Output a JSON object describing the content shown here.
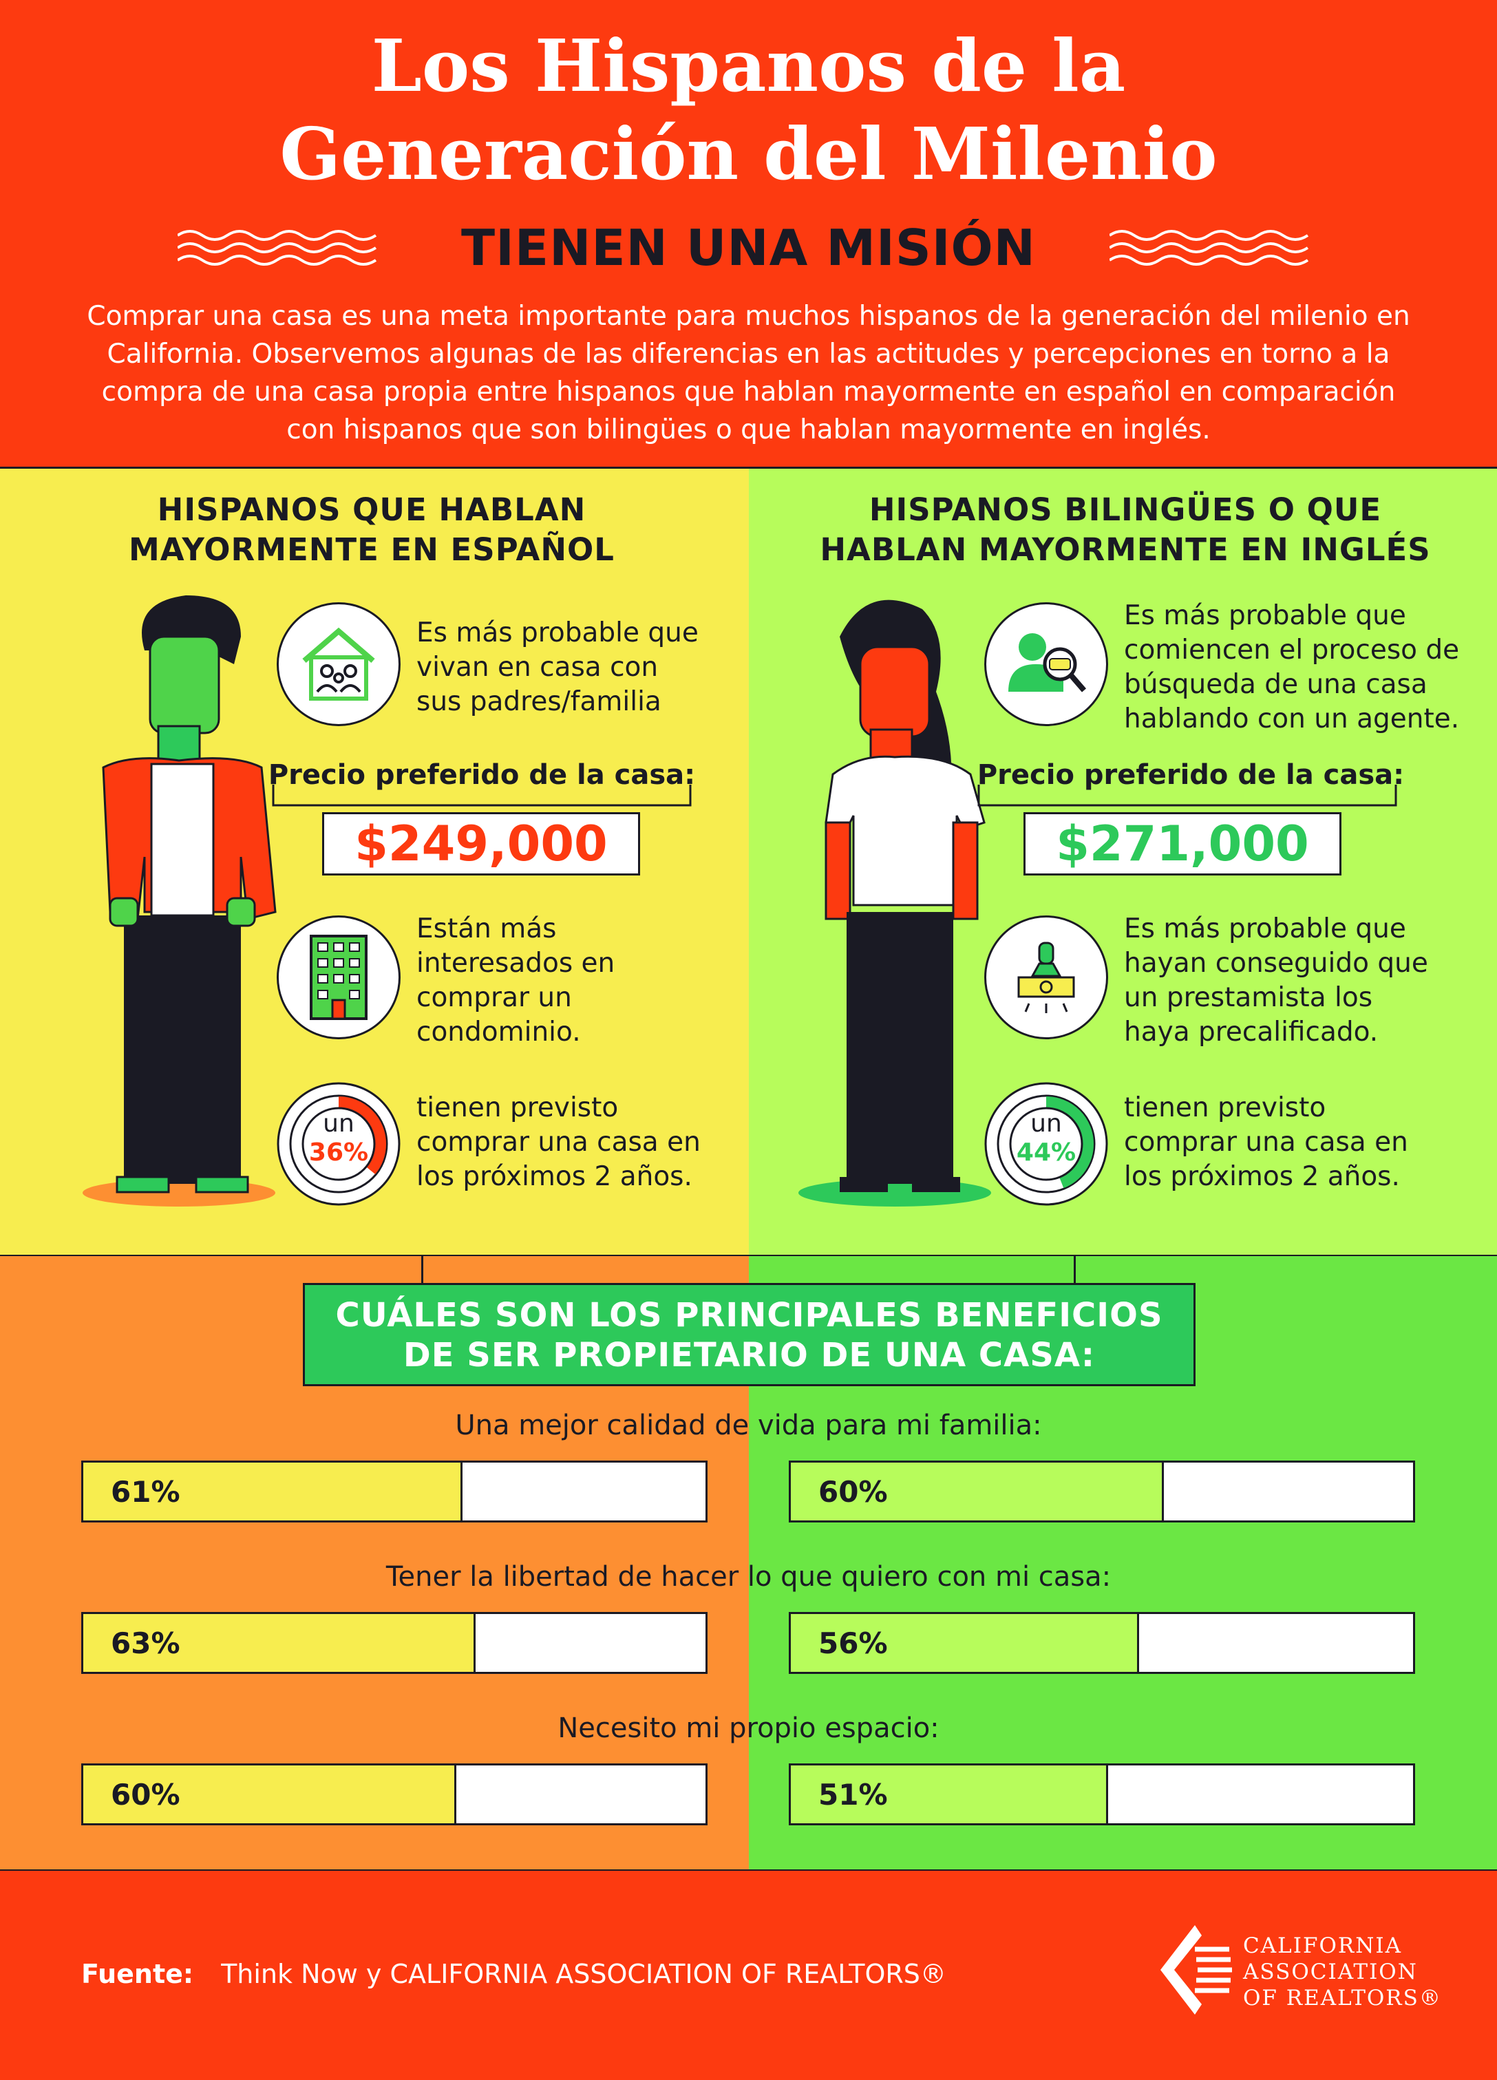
{
  "header": {
    "title_line1": "Los Hispanos de la",
    "title_line2": "Generación del Milenio",
    "subtitle": "TIENEN UNA MISIÓN",
    "intro": "Comprar una casa es una meta importante para muchos hispanos de la generación del milenio en California. Observemos algunas de las diferencias en las actitudes y percepciones en torno a la compra de una casa propia entre hispanos que hablan mayormente en español en comparación con hispanos que son bilingües o que hablan mayormente en inglés."
  },
  "left": {
    "title_line1": "HISPANOS QUE HABLAN",
    "title_line2": "MAYORMENTE EN ESPAÑOL",
    "fact1": [
      "Es más probable que",
      "vivan en casa con",
      "sus padres/familia"
    ],
    "price_label": "Precio preferido de la casa:",
    "price": "$249,000",
    "fact2": [
      "Están más",
      "interesados en",
      "comprar un",
      "condominio."
    ],
    "donut_prefix": "un",
    "donut_pct": "36%",
    "donut_value": 0.36,
    "fact3": [
      "tienen previsto",
      "comprar una casa en",
      "los próximos 2 años."
    ],
    "accent": "#fd3a10"
  },
  "right": {
    "title_line1": "HISPANOS BILINGÜES O QUE",
    "title_line2": "HABLAN MAYORMENTE EN INGLÉS",
    "fact1": [
      "Es más probable que",
      "comiencen el proceso de",
      "búsqueda de una casa",
      "hablando con un agente."
    ],
    "price_label": "Precio preferido de la casa:",
    "price": "$271,000",
    "fact2": [
      "Es más probable que",
      "hayan conseguido que",
      "un prestamista los",
      "haya precalificado."
    ],
    "donut_prefix": "un",
    "donut_pct": "44%",
    "donut_value": 0.44,
    "fact3": [
      "tienen previsto",
      "comprar una casa en",
      "los próximos 2 años."
    ],
    "accent": "#2dc95a"
  },
  "benefits": {
    "title_line1": "CUÁLES SON LOS PRINCIPALES BENEFICIOS",
    "title_line2": "DE SER PROPIETARIO DE UNA CASA:",
    "items": [
      {
        "question": "Una mejor calidad de vida para mi familia:",
        "left_label": "61%",
        "left": 0.61,
        "right_label": "60%",
        "right": 0.6
      },
      {
        "question": "Tener la libertad de hacer lo que quiero con mi casa:",
        "left_label": "63%",
        "left": 0.63,
        "right_label": "56%",
        "right": 0.56
      },
      {
        "question": "Necesito mi propio espacio:",
        "left_label": "60%",
        "left": 0.6,
        "right_label": "51%",
        "right": 0.51
      }
    ],
    "left_color": "#f7ed4f",
    "right_color": "#b7fc5b"
  },
  "footer": {
    "source_label": "Fuente:",
    "source_text": "Think Now y CALIFORNIA ASSOCIATION OF REALTORS®",
    "logo_line1": "CALIFORNIA",
    "logo_line2": "ASSOCIATION",
    "logo_line3": "OF REALTORS®"
  }
}
